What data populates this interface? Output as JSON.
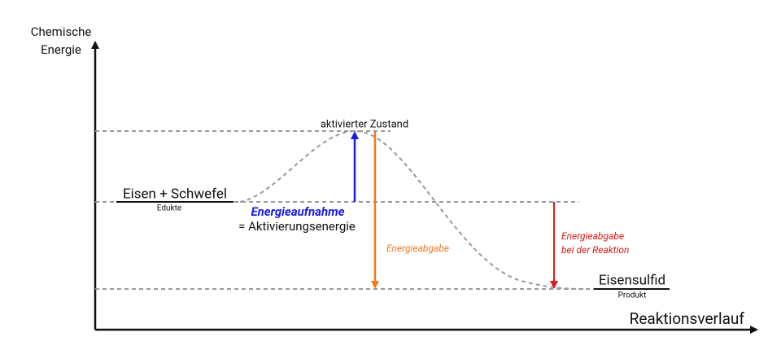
{
  "axes": {
    "y_label": [
      "Chemische",
      "Energie"
    ],
    "x_label": "Reaktionsverlauf"
  },
  "states": {
    "activated": {
      "label": "aktivierter Zustand"
    },
    "reactants": {
      "label": "Eisen + Schwefel",
      "sublabel": "Edukte"
    },
    "products": {
      "label": "Eisensulfid",
      "sublabel": "Produkt"
    }
  },
  "annotations": {
    "energy_in": {
      "title": "Energieaufnahme",
      "text": "= Aktivierungsenergie"
    },
    "energy_out": {
      "title": "Energieabgabe"
    },
    "net_release": {
      "lines": [
        "Energieabgabe",
        "bei der Reaktion"
      ]
    }
  }
}
